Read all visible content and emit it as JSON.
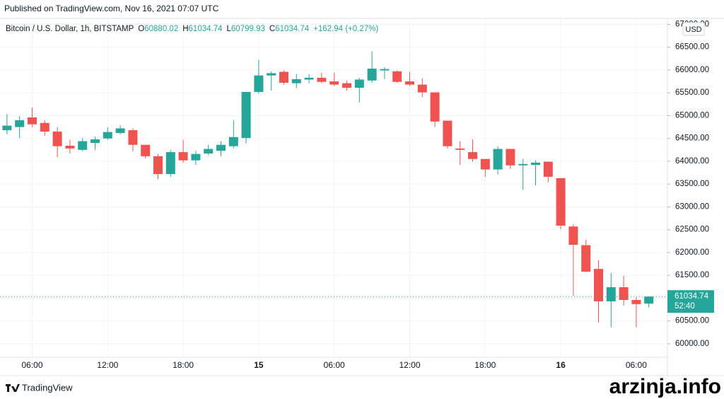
{
  "published": "Published on TradingView.com, Nov 16, 2021 07:07 UTC",
  "brand": "TradingView",
  "watermark": "arzinja.info",
  "chart_data": {
    "type": "candlestick",
    "title": "Bitcoin / U.S. Dollar, 1h, BITSTAMP",
    "legend": {
      "open_label": "O",
      "open": 60880.02,
      "high_label": "H",
      "high": 61034.74,
      "low_label": "L",
      "low": 60799.93,
      "close_label": "C",
      "close": 61034.74,
      "change": "+162.94 (+0.27%)"
    },
    "currency": "USD",
    "last_price": 61034.74,
    "countdown": "52:40",
    "up_color": "#26a69a",
    "down_color": "#ef5350",
    "grid": true,
    "categories": [
      null,
      null,
      "06:00",
      null,
      null,
      null,
      null,
      null,
      "12:00",
      null,
      null,
      null,
      null,
      null,
      "18:00",
      null,
      null,
      null,
      null,
      null,
      "15",
      null,
      null,
      null,
      null,
      null,
      "06:00",
      null,
      null,
      null,
      null,
      null,
      "12:00",
      null,
      null,
      null,
      null,
      null,
      "18:00",
      null,
      null,
      null,
      null,
      null,
      "16",
      null,
      null,
      null,
      null,
      null,
      "06:00",
      null
    ],
    "open": [
      64680,
      64750,
      64960,
      64840,
      64650,
      64340,
      64250,
      64400,
      64500,
      64620,
      64680,
      64360,
      64110,
      63720,
      64200,
      64020,
      64170,
      64230,
      64330,
      64510,
      65520,
      65880,
      65960,
      65710,
      65790,
      65830,
      65750,
      65710,
      65610,
      65770,
      65990,
      65970,
      65750,
      65680,
      65510,
      64890,
      64280,
      64200,
      64050,
      63820,
      64270,
      63910,
      63920,
      63990,
      63630,
      62570,
      62160,
      61640,
      60930,
      61240,
      60960,
      60880.02
    ],
    "high": [
      65030,
      64990,
      65180,
      64900,
      64750,
      64470,
      64510,
      64540,
      64750,
      64790,
      64720,
      64360,
      64160,
      64250,
      64470,
      64230,
      64360,
      64440,
      64900,
      65520,
      66220,
      65970,
      65990,
      65910,
      65910,
      65940,
      65940,
      65770,
      65830,
      66410,
      66060,
      65990,
      65960,
      65820,
      65510,
      64890,
      64440,
      64480,
      64050,
      64330,
      64270,
      64050,
      64020,
      63990,
      63630,
      62620,
      62280,
      61830,
      61550,
      61490,
      61020,
      61034.74
    ],
    "low": [
      64590,
      64510,
      64750,
      64560,
      64090,
      64170,
      64220,
      64250,
      64470,
      64590,
      64220,
      64060,
      63610,
      63660,
      63970,
      63920,
      64130,
      64110,
      64280,
      64390,
      65480,
      65550,
      65680,
      65600,
      65710,
      65710,
      65650,
      65550,
      65290,
      65720,
      65800,
      65720,
      65650,
      65410,
      64750,
      64280,
      63920,
      63990,
      63660,
      63710,
      63830,
      63370,
      63470,
      63540,
      62510,
      61050,
      61570,
      60470,
      60360,
      60840,
      60360,
      60799.93
    ],
    "close": [
      64780,
      64900,
      64810,
      64650,
      64330,
      64280,
      64440,
      64480,
      64640,
      64720,
      64360,
      64110,
      63720,
      64200,
      64020,
      64160,
      64270,
      64360,
      64530,
      65520,
      65880,
      65930,
      65720,
      65800,
      65830,
      65740,
      65680,
      65610,
      65790,
      66030,
      66020,
      65740,
      65680,
      65510,
      64870,
      64330,
      64250,
      64050,
      63820,
      64270,
      63910,
      63940,
      63970,
      63660,
      62590,
      62170,
      61580,
      60930,
      61240,
      60960,
      60870,
      61034.74
    ],
    "ylim": [
      59720,
      67100
    ],
    "yticks": [
      {
        "value": 60000,
        "label": "60000.00"
      },
      {
        "value": 60500,
        "label": "60500.00"
      },
      {
        "value": 61000,
        "label": "61000.00"
      },
      {
        "value": 61500,
        "label": "61500.00"
      },
      {
        "value": 62000,
        "label": "62000.00"
      },
      {
        "value": 62500,
        "label": "62500.00"
      },
      {
        "value": 63000,
        "label": "63000.00"
      },
      {
        "value": 63500,
        "label": "63500.00"
      },
      {
        "value": 64000,
        "label": "64000.00"
      },
      {
        "value": 64500,
        "label": "64500.00"
      },
      {
        "value": 65000,
        "label": "65000.00"
      },
      {
        "value": 65500,
        "label": "65500.00"
      },
      {
        "value": 66000,
        "label": "66000.00"
      },
      {
        "value": 66500,
        "label": "66500.00"
      },
      {
        "value": 67000,
        "label": "67000.00"
      }
    ]
  }
}
